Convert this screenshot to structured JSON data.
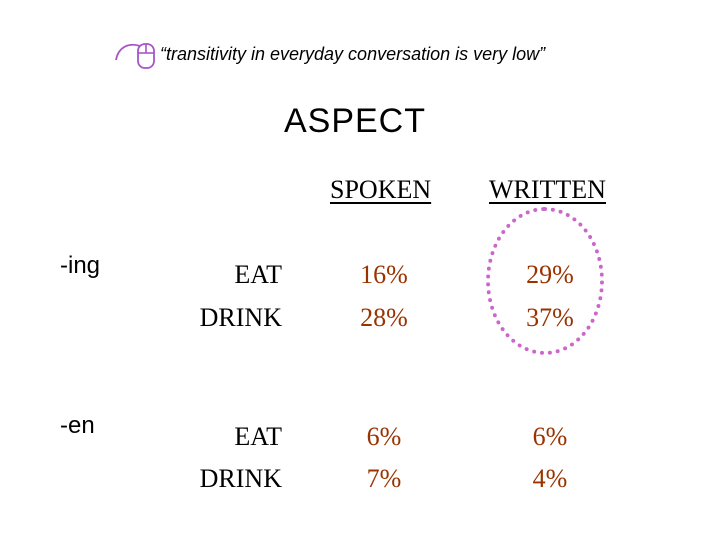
{
  "slide": {
    "quote": "“transitivity in everyday conversation is very low”",
    "title": "ASPECT"
  },
  "table": {
    "columns": [
      "SPOKEN",
      "WRITTEN"
    ],
    "groups": [
      {
        "suffix": "-ing",
        "rows": [
          {
            "verb": "EAT",
            "spoken": "16%",
            "written": "29%"
          },
          {
            "verb": "DRINK",
            "spoken": "28%",
            "written": "37%"
          }
        ]
      },
      {
        "suffix": "-en",
        "rows": [
          {
            "verb": "EAT",
            "spoken": "6%",
            "written": "6%"
          },
          {
            "verb": "DRINK",
            "spoken": "7%",
            "written": "4%"
          }
        ]
      }
    ]
  },
  "colors": {
    "value_text": "#993300",
    "circle_highlight": "#cc66cc",
    "icon_accent": "#a855c8"
  },
  "icons": {
    "bullet": "mouse-icon",
    "highlight": "dotted-circle"
  }
}
